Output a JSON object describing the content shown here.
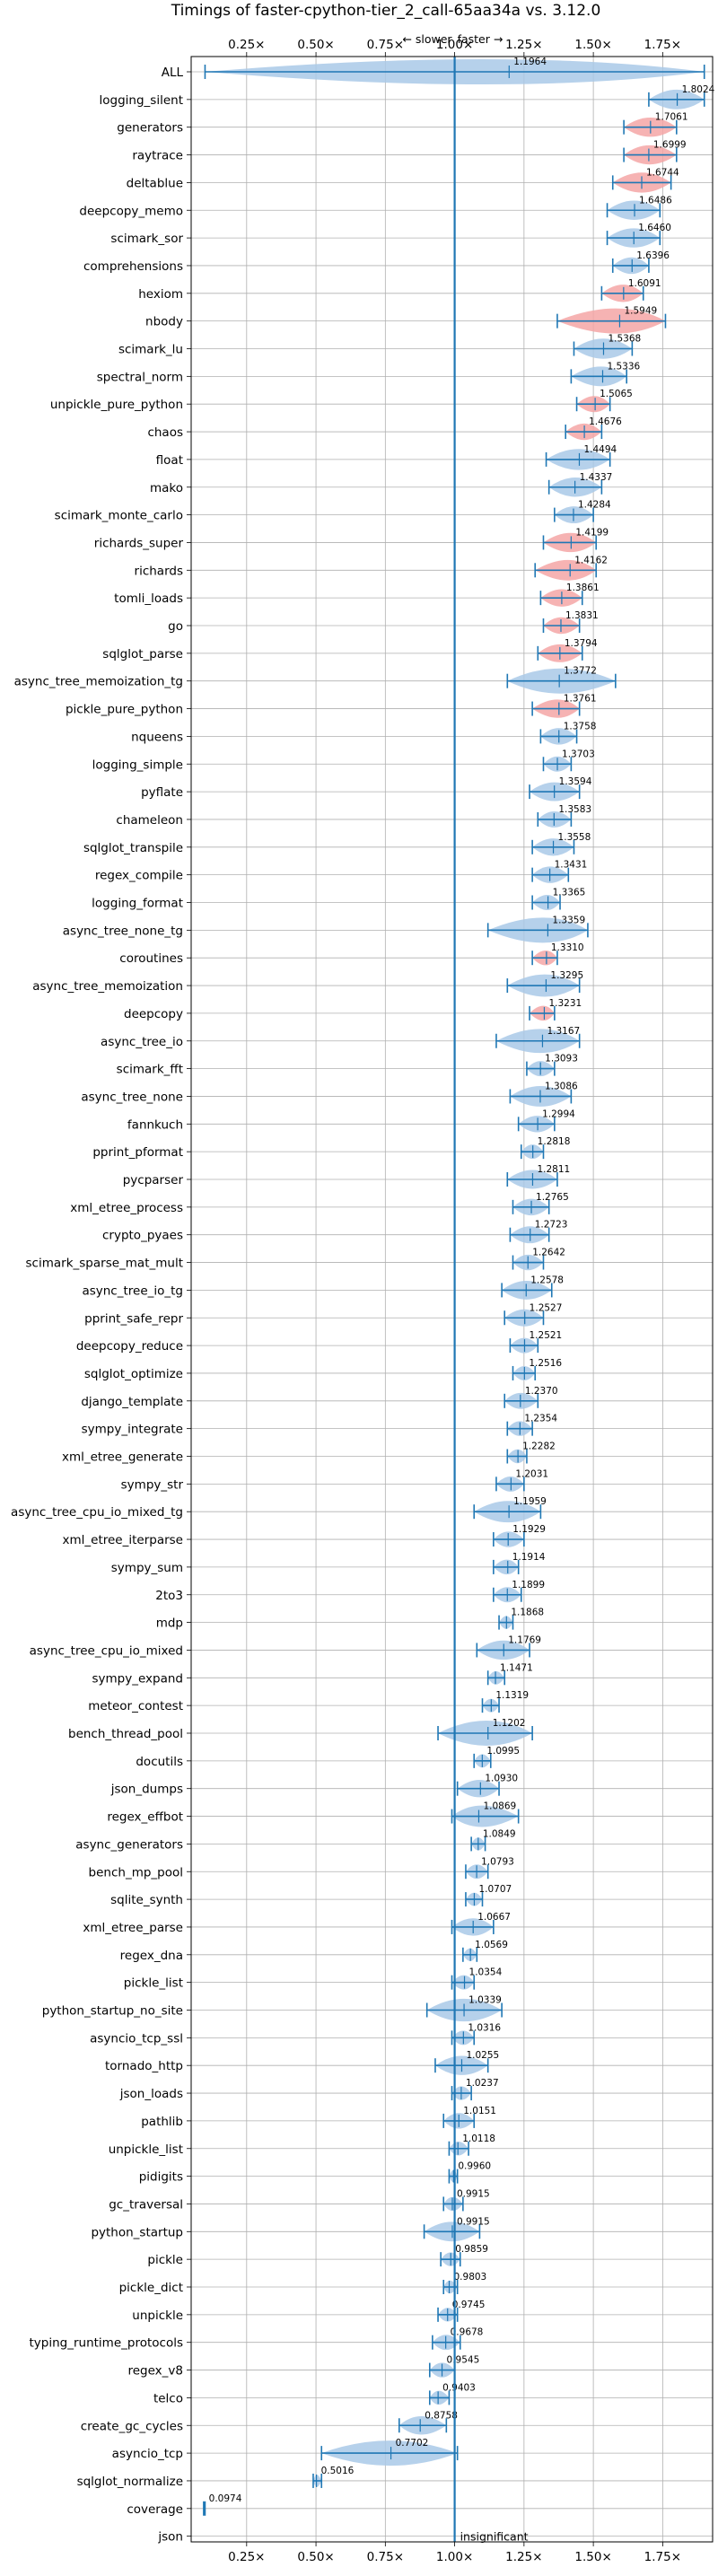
{
  "chart_data": {
    "type": "violin",
    "title": "Timings of faster-cpython-tier_2_call-65aa34a vs. 3.12.0",
    "xlim": [
      0.05,
      1.93
    ],
    "xticks": [
      "0.25×",
      "0.50×",
      "0.75×",
      "1.00×",
      "1.25×",
      "1.50×",
      "1.75×"
    ],
    "xtick_values": [
      0.25,
      0.5,
      0.75,
      1.0,
      1.25,
      1.5,
      1.75
    ],
    "slower_label": "← slower",
    "faster_label": "faster →",
    "reference_line": 1.0,
    "insignificant_label": "insignificant",
    "grid": true,
    "colors": {
      "faster": "#5b9bd5",
      "faster_fill": "#a9c9e8",
      "slower_fill": "#f4a6a6",
      "line": "#1f77b4"
    },
    "benchmarks": [
      {
        "name": "ALL",
        "value": 1.1964,
        "min": 0.1,
        "max": 1.9,
        "label": "1.1964"
      },
      {
        "name": "logging_silent",
        "value": 1.8024,
        "min": 1.7,
        "max": 1.9,
        "label": "1.8024"
      },
      {
        "name": "generators",
        "value": 1.7061,
        "min": 1.61,
        "max": 1.8,
        "label": "1.7061",
        "slow": true
      },
      {
        "name": "raytrace",
        "value": 1.6999,
        "min": 1.61,
        "max": 1.8,
        "label": "1.6999",
        "slow": true
      },
      {
        "name": "deltablue",
        "value": 1.6744,
        "min": 1.57,
        "max": 1.78,
        "label": "1.6744",
        "slow": true
      },
      {
        "name": "deepcopy_memo",
        "value": 1.6486,
        "min": 1.55,
        "max": 1.74,
        "label": "1.6486"
      },
      {
        "name": "scimark_sor",
        "value": 1.646,
        "min": 1.55,
        "max": 1.74,
        "label": "1.6460"
      },
      {
        "name": "comprehensions",
        "value": 1.6396,
        "min": 1.57,
        "max": 1.7,
        "label": "1.6396"
      },
      {
        "name": "hexiom",
        "value": 1.6091,
        "min": 1.53,
        "max": 1.68,
        "label": "1.6091",
        "slow": true
      },
      {
        "name": "nbody",
        "value": 1.5949,
        "min": 1.37,
        "max": 1.76,
        "label": "1.5949",
        "slow": true
      },
      {
        "name": "scimark_lu",
        "value": 1.5368,
        "min": 1.43,
        "max": 1.64,
        "label": "1.5368"
      },
      {
        "name": "spectral_norm",
        "value": 1.5336,
        "min": 1.42,
        "max": 1.62,
        "label": "1.5336"
      },
      {
        "name": "unpickle_pure_python",
        "value": 1.5065,
        "min": 1.44,
        "max": 1.56,
        "label": "1.5065",
        "slow": true
      },
      {
        "name": "chaos",
        "value": 1.4676,
        "min": 1.4,
        "max": 1.53,
        "label": "1.4676",
        "slow": true
      },
      {
        "name": "float",
        "value": 1.4494,
        "min": 1.33,
        "max": 1.56,
        "label": "1.4494"
      },
      {
        "name": "mako",
        "value": 1.4337,
        "min": 1.34,
        "max": 1.53,
        "label": "1.4337"
      },
      {
        "name": "scimark_monte_carlo",
        "value": 1.4284,
        "min": 1.36,
        "max": 1.5,
        "label": "1.4284"
      },
      {
        "name": "richards_super",
        "value": 1.4199,
        "min": 1.32,
        "max": 1.51,
        "label": "1.4199",
        "slow": true
      },
      {
        "name": "richards",
        "value": 1.4162,
        "min": 1.29,
        "max": 1.51,
        "label": "1.4162",
        "slow": true
      },
      {
        "name": "tomli_loads",
        "value": 1.3861,
        "min": 1.31,
        "max": 1.46,
        "label": "1.3861",
        "slow": true
      },
      {
        "name": "go",
        "value": 1.3831,
        "min": 1.32,
        "max": 1.45,
        "label": "1.3831",
        "slow": true
      },
      {
        "name": "sqlglot_parse",
        "value": 1.3794,
        "min": 1.3,
        "max": 1.46,
        "label": "1.3794",
        "slow": true
      },
      {
        "name": "async_tree_memoization_tg",
        "value": 1.3772,
        "min": 1.19,
        "max": 1.58,
        "label": "1.3772"
      },
      {
        "name": "pickle_pure_python",
        "value": 1.3761,
        "min": 1.28,
        "max": 1.45,
        "label": "1.3761",
        "slow": true
      },
      {
        "name": "nqueens",
        "value": 1.3758,
        "min": 1.31,
        "max": 1.44,
        "label": "1.3758"
      },
      {
        "name": "logging_simple",
        "value": 1.3703,
        "min": 1.32,
        "max": 1.42,
        "label": "1.3703"
      },
      {
        "name": "pyflate",
        "value": 1.3594,
        "min": 1.27,
        "max": 1.45,
        "label": "1.3594"
      },
      {
        "name": "chameleon",
        "value": 1.3583,
        "min": 1.3,
        "max": 1.42,
        "label": "1.3583"
      },
      {
        "name": "sqlglot_transpile",
        "value": 1.3558,
        "min": 1.28,
        "max": 1.43,
        "label": "1.3558"
      },
      {
        "name": "regex_compile",
        "value": 1.3431,
        "min": 1.28,
        "max": 1.41,
        "label": "1.3431"
      },
      {
        "name": "logging_format",
        "value": 1.3365,
        "min": 1.28,
        "max": 1.38,
        "label": "1.3365"
      },
      {
        "name": "async_tree_none_tg",
        "value": 1.3359,
        "min": 1.12,
        "max": 1.48,
        "label": "1.3359"
      },
      {
        "name": "coroutines",
        "value": 1.331,
        "min": 1.28,
        "max": 1.37,
        "label": "1.3310",
        "slow": true
      },
      {
        "name": "async_tree_memoization",
        "value": 1.3295,
        "min": 1.19,
        "max": 1.45,
        "label": "1.3295"
      },
      {
        "name": "deepcopy",
        "value": 1.3231,
        "min": 1.27,
        "max": 1.36,
        "label": "1.3231",
        "slow": true
      },
      {
        "name": "async_tree_io",
        "value": 1.3167,
        "min": 1.15,
        "max": 1.45,
        "label": "1.3167"
      },
      {
        "name": "scimark_fft",
        "value": 1.3093,
        "min": 1.26,
        "max": 1.36,
        "label": "1.3093"
      },
      {
        "name": "async_tree_none",
        "value": 1.3086,
        "min": 1.2,
        "max": 1.42,
        "label": "1.3086"
      },
      {
        "name": "fannkuch",
        "value": 1.2994,
        "min": 1.23,
        "max": 1.36,
        "label": "1.2994"
      },
      {
        "name": "pprint_pformat",
        "value": 1.2818,
        "min": 1.24,
        "max": 1.32,
        "label": "1.2818"
      },
      {
        "name": "pycparser",
        "value": 1.2811,
        "min": 1.19,
        "max": 1.37,
        "label": "1.2811"
      },
      {
        "name": "xml_etree_process",
        "value": 1.2765,
        "min": 1.21,
        "max": 1.34,
        "label": "1.2765"
      },
      {
        "name": "crypto_pyaes",
        "value": 1.2723,
        "min": 1.2,
        "max": 1.34,
        "label": "1.2723"
      },
      {
        "name": "scimark_sparse_mat_mult",
        "value": 1.2642,
        "min": 1.21,
        "max": 1.32,
        "label": "1.2642"
      },
      {
        "name": "async_tree_io_tg",
        "value": 1.2578,
        "min": 1.17,
        "max": 1.35,
        "label": "1.2578"
      },
      {
        "name": "pprint_safe_repr",
        "value": 1.2527,
        "min": 1.18,
        "max": 1.32,
        "label": "1.2527"
      },
      {
        "name": "deepcopy_reduce",
        "value": 1.2521,
        "min": 1.2,
        "max": 1.3,
        "label": "1.2521"
      },
      {
        "name": "sqlglot_optimize",
        "value": 1.2516,
        "min": 1.21,
        "max": 1.29,
        "label": "1.2516"
      },
      {
        "name": "django_template",
        "value": 1.237,
        "min": 1.18,
        "max": 1.3,
        "label": "1.2370"
      },
      {
        "name": "sympy_integrate",
        "value": 1.2354,
        "min": 1.19,
        "max": 1.28,
        "label": "1.2354"
      },
      {
        "name": "xml_etree_generate",
        "value": 1.2282,
        "min": 1.19,
        "max": 1.26,
        "label": "1.2282"
      },
      {
        "name": "sympy_str",
        "value": 1.2031,
        "min": 1.15,
        "max": 1.25,
        "label": "1.2031"
      },
      {
        "name": "async_tree_cpu_io_mixed_tg",
        "value": 1.1959,
        "min": 1.07,
        "max": 1.31,
        "label": "1.1959"
      },
      {
        "name": "xml_etree_iterparse",
        "value": 1.1929,
        "min": 1.14,
        "max": 1.25,
        "label": "1.1929"
      },
      {
        "name": "sympy_sum",
        "value": 1.1914,
        "min": 1.14,
        "max": 1.23,
        "label": "1.1914"
      },
      {
        "name": "2to3",
        "value": 1.1899,
        "min": 1.14,
        "max": 1.24,
        "label": "1.1899"
      },
      {
        "name": "mdp",
        "value": 1.1868,
        "min": 1.16,
        "max": 1.21,
        "label": "1.1868"
      },
      {
        "name": "async_tree_cpu_io_mixed",
        "value": 1.1769,
        "min": 1.08,
        "max": 1.27,
        "label": "1.1769"
      },
      {
        "name": "sympy_expand",
        "value": 1.1471,
        "min": 1.12,
        "max": 1.18,
        "label": "1.1471"
      },
      {
        "name": "meteor_contest",
        "value": 1.1319,
        "min": 1.1,
        "max": 1.16,
        "label": "1.1319"
      },
      {
        "name": "bench_thread_pool",
        "value": 1.1202,
        "min": 0.94,
        "max": 1.28,
        "label": "1.1202"
      },
      {
        "name": "docutils",
        "value": 1.0995,
        "min": 1.07,
        "max": 1.13,
        "label": "1.0995"
      },
      {
        "name": "json_dumps",
        "value": 1.093,
        "min": 1.01,
        "max": 1.16,
        "label": "1.0930"
      },
      {
        "name": "regex_effbot",
        "value": 1.0869,
        "min": 0.99,
        "max": 1.23,
        "label": "1.0869"
      },
      {
        "name": "async_generators",
        "value": 1.0849,
        "min": 1.06,
        "max": 1.11,
        "label": "1.0849"
      },
      {
        "name": "bench_mp_pool",
        "value": 1.0793,
        "min": 1.04,
        "max": 1.12,
        "label": "1.0793"
      },
      {
        "name": "sqlite_synth",
        "value": 1.0707,
        "min": 1.04,
        "max": 1.1,
        "label": "1.0707"
      },
      {
        "name": "xml_etree_parse",
        "value": 1.0667,
        "min": 0.99,
        "max": 1.14,
        "label": "1.0667"
      },
      {
        "name": "regex_dna",
        "value": 1.0569,
        "min": 1.03,
        "max": 1.08,
        "label": "1.0569"
      },
      {
        "name": "pickle_list",
        "value": 1.0354,
        "min": 0.99,
        "max": 1.07,
        "label": "1.0354"
      },
      {
        "name": "python_startup_no_site",
        "value": 1.0339,
        "min": 0.9,
        "max": 1.17,
        "label": "1.0339"
      },
      {
        "name": "asyncio_tcp_ssl",
        "value": 1.0316,
        "min": 0.99,
        "max": 1.07,
        "label": "1.0316"
      },
      {
        "name": "tornado_http",
        "value": 1.0255,
        "min": 0.93,
        "max": 1.12,
        "label": "1.0255"
      },
      {
        "name": "json_loads",
        "value": 1.0237,
        "min": 0.99,
        "max": 1.06,
        "label": "1.0237"
      },
      {
        "name": "pathlib",
        "value": 1.0151,
        "min": 0.96,
        "max": 1.07,
        "label": "1.0151"
      },
      {
        "name": "unpickle_list",
        "value": 1.0118,
        "min": 0.98,
        "max": 1.05,
        "label": "1.0118"
      },
      {
        "name": "pidigits",
        "value": 0.996,
        "min": 0.98,
        "max": 1.01,
        "label": "0.9960"
      },
      {
        "name": "gc_traversal",
        "value": 0.9915,
        "min": 0.96,
        "max": 1.03,
        "label": "0.9915"
      },
      {
        "name": "python_startup",
        "value": 0.9915,
        "min": 0.89,
        "max": 1.09,
        "label": "0.9915"
      },
      {
        "name": "pickle",
        "value": 0.9859,
        "min": 0.95,
        "max": 1.02,
        "label": "0.9859"
      },
      {
        "name": "pickle_dict",
        "value": 0.9803,
        "min": 0.96,
        "max": 1.01,
        "label": "0.9803"
      },
      {
        "name": "unpickle",
        "value": 0.9745,
        "min": 0.94,
        "max": 1.01,
        "label": "0.9745"
      },
      {
        "name": "typing_runtime_protocols",
        "value": 0.9678,
        "min": 0.92,
        "max": 1.02,
        "label": "0.9678"
      },
      {
        "name": "regex_v8",
        "value": 0.9545,
        "min": 0.91,
        "max": 1.0,
        "label": "0.9545"
      },
      {
        "name": "telco",
        "value": 0.9403,
        "min": 0.91,
        "max": 0.98,
        "label": "0.9403"
      },
      {
        "name": "create_gc_cycles",
        "value": 0.8758,
        "min": 0.8,
        "max": 0.97,
        "label": "0.8758"
      },
      {
        "name": "asyncio_tcp",
        "value": 0.7702,
        "min": 0.52,
        "max": 1.01,
        "label": "0.7702"
      },
      {
        "name": "sqlglot_normalize",
        "value": 0.5016,
        "min": 0.49,
        "max": 0.52,
        "label": "0.5016"
      },
      {
        "name": "coverage",
        "value": 0.0974,
        "min": 0.095,
        "max": 0.1,
        "label": "0.0974"
      },
      {
        "name": "json",
        "value": null,
        "label": "",
        "insignificant": true
      }
    ]
  }
}
